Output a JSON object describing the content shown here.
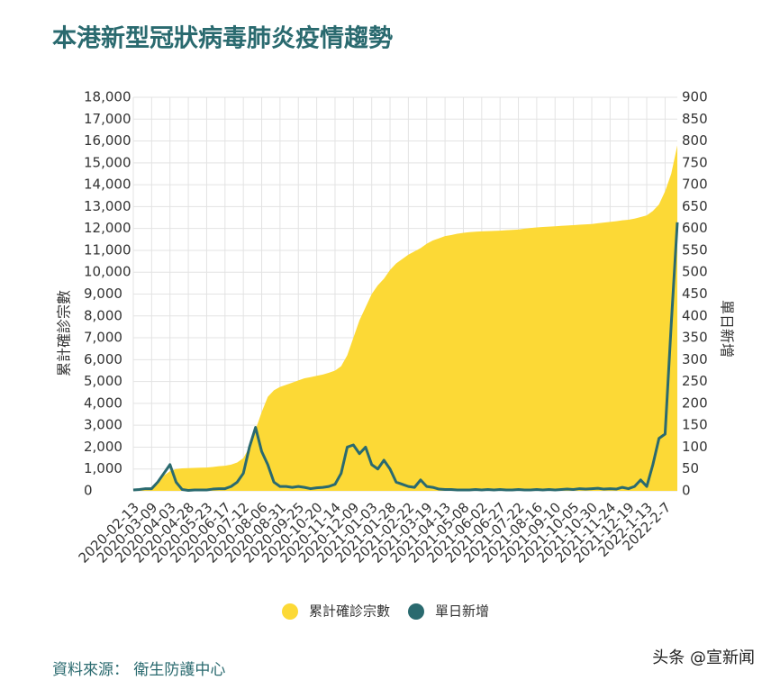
{
  "title": "本港新型冠狀病毒肺炎疫情趨勢",
  "chart_data": {
    "type": "combo",
    "y_label": "累計確診宗數",
    "y2_label": "單日新增",
    "categories": [
      "2020-02-13",
      null,
      null,
      "2020-03-09",
      null,
      null,
      "2020-04-03",
      null,
      null,
      "2020-04-28",
      null,
      null,
      "2020-05-23",
      null,
      null,
      "2020-06-17",
      null,
      null,
      "2020-07-12",
      null,
      null,
      "2020-08-06",
      null,
      null,
      "2020-08-31",
      null,
      null,
      "2020-09-25",
      null,
      null,
      "2020-10-20",
      null,
      null,
      "2020-11-14",
      null,
      null,
      "2020-12-09",
      null,
      null,
      "2021-01-03",
      null,
      null,
      "2021-01-28",
      null,
      null,
      "2021-02-22",
      null,
      null,
      "2021-03-19",
      null,
      null,
      "2021-04-13",
      null,
      null,
      "2021-05-08",
      null,
      null,
      "2021-06-02",
      null,
      null,
      "2021-06-27",
      null,
      null,
      "2021-07-22",
      null,
      null,
      "2021-08-16",
      null,
      null,
      "2021-09-10",
      null,
      null,
      "2021-10-05",
      null,
      null,
      "2021-10-30",
      null,
      null,
      "2021-11-24",
      null,
      null,
      "2021-12-19",
      null,
      null,
      "2022-1-13",
      null,
      null,
      "2022-2-7",
      null,
      null
    ],
    "series": [
      {
        "name": "累計確診宗數",
        "type": "area",
        "color": "#fcd936",
        "values": [
          50,
          80,
          120,
          160,
          300,
          700,
          900,
          1000,
          1030,
          1038,
          1050,
          1060,
          1066,
          1090,
          1130,
          1150,
          1200,
          1300,
          1500,
          2000,
          2800,
          3600,
          4300,
          4600,
          4750,
          4850,
          4950,
          5050,
          5150,
          5200,
          5260,
          5320,
          5400,
          5500,
          5700,
          6200,
          7000,
          7800,
          8400,
          9000,
          9400,
          9700,
          10100,
          10400,
          10600,
          10800,
          10950,
          11100,
          11300,
          11450,
          11550,
          11650,
          11700,
          11760,
          11800,
          11830,
          11850,
          11870,
          11880,
          11890,
          11900,
          11920,
          11935,
          11950,
          11990,
          12020,
          12050,
          12070,
          12085,
          12100,
          12120,
          12135,
          12150,
          12170,
          12185,
          12200,
          12240,
          12270,
          12300,
          12330,
          12370,
          12400,
          12450,
          12520,
          12600,
          12800,
          13100,
          13700,
          14500,
          15800
        ]
      },
      {
        "name": "單日新增",
        "type": "line",
        "axis": "y2",
        "color": "#2a6a6f",
        "values": [
          2,
          3,
          5,
          5,
          20,
          40,
          60,
          20,
          3,
          1,
          2,
          2,
          2,
          4,
          5,
          5,
          10,
          20,
          40,
          100,
          145,
          90,
          60,
          20,
          10,
          10,
          8,
          10,
          8,
          5,
          7,
          8,
          10,
          15,
          40,
          100,
          105,
          85,
          100,
          60,
          50,
          70,
          50,
          20,
          15,
          10,
          8,
          25,
          10,
          8,
          4,
          3,
          3,
          2,
          2,
          2,
          3,
          2,
          3,
          2,
          3,
          2,
          2,
          3,
          2,
          2,
          3,
          2,
          3,
          2,
          3,
          4,
          3,
          5,
          4,
          5,
          6,
          4,
          5,
          4,
          8,
          5,
          10,
          25,
          10,
          60,
          120,
          130,
          380,
          614
        ]
      }
    ],
    "ylim": [
      0,
      18000
    ],
    "yticks": [
      0,
      {
        "value": 1000,
        "label": "1,000"
      },
      {
        "value": 2000,
        "label": "2,000"
      },
      {
        "value": 3000,
        "label": "3,000"
      },
      {
        "value": 4000,
        "label": "4,000"
      },
      {
        "value": 5000,
        "label": "5,000"
      },
      {
        "value": 6000,
        "label": "6,000"
      },
      {
        "value": 7000,
        "label": "7,000"
      },
      {
        "value": 8000,
        "label": "8,000"
      },
      {
        "value": 9000,
        "label": "9,000"
      },
      {
        "value": 10000,
        "label": "10,000"
      },
      {
        "value": 11000,
        "label": "11,000"
      },
      {
        "value": 12000,
        "label": "12,000"
      },
      {
        "value": 13000,
        "label": "13,000"
      },
      {
        "value": 14000,
        "label": "14,000"
      },
      {
        "value": 15000,
        "label": "15,000"
      },
      {
        "value": 16000,
        "label": "16,000"
      },
      {
        "value": 17000,
        "label": "17,000"
      },
      {
        "value": 18000,
        "label": "18,000"
      }
    ],
    "y2lim": [
      0,
      900
    ],
    "y2ticks": [
      0,
      50,
      100,
      150,
      200,
      250,
      300,
      350,
      400,
      450,
      500,
      550,
      600,
      650,
      700,
      750,
      800,
      850,
      900
    ],
    "grid": true
  },
  "source": "資料來源： 衛生防護中心",
  "watermark": "头条 @宣新闻"
}
